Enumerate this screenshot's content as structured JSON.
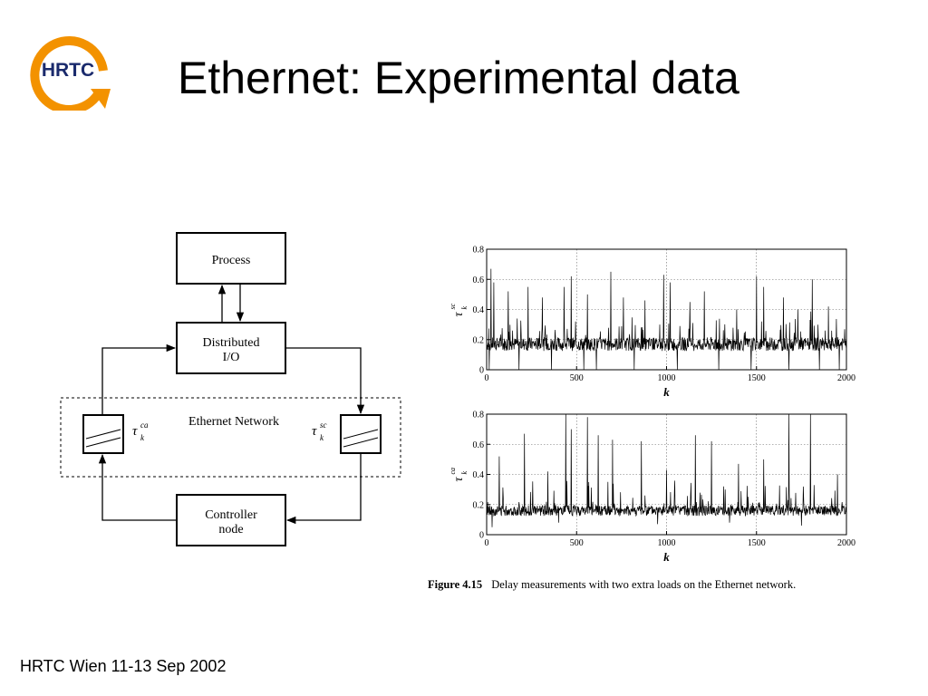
{
  "header": {
    "logo_text": "HRTC",
    "title": "Ethernet: Experimental data"
  },
  "diagram": {
    "process_label": "Process",
    "io_label_line1": "Distributed",
    "io_label_line2": "I/O",
    "network_label": "Ethernet Network",
    "controller_label_line1": "Controller",
    "controller_label_line2": "node",
    "delay_left_symbol": "τ",
    "delay_left_super": "ca",
    "delay_left_sub": "k",
    "delay_right_symbol": "τ",
    "delay_right_super": "sc",
    "delay_right_sub": "k"
  },
  "chart_data": [
    {
      "type": "line",
      "xlabel": "k",
      "ylabel_symbol": "τ",
      "ylabel_super": "sc",
      "ylabel_sub": "k",
      "xlim": [
        0,
        2000
      ],
      "ylim": [
        0,
        0.8
      ],
      "xticks": [
        "0",
        "500",
        "1000",
        "1500",
        "2000"
      ],
      "yticks": [
        "0",
        "0.2",
        "0.4",
        "0.6",
        "0.8"
      ],
      "grid": true,
      "baseline": 0.17,
      "noise": 0.045,
      "spikes": [
        [
          25,
          0.67
        ],
        [
          40,
          0.58
        ],
        [
          120,
          0.52
        ],
        [
          230,
          0.55
        ],
        [
          310,
          0.48
        ],
        [
          430,
          0.55
        ],
        [
          470,
          0.62
        ],
        [
          560,
          0.5
        ],
        [
          690,
          0.65
        ],
        [
          760,
          0.48
        ],
        [
          880,
          0.46
        ],
        [
          985,
          0.63
        ],
        [
          1020,
          0.58
        ],
        [
          1130,
          0.45
        ],
        [
          1210,
          0.52
        ],
        [
          1390,
          0.4
        ],
        [
          1500,
          0.62
        ],
        [
          1540,
          0.55
        ],
        [
          1650,
          0.48
        ],
        [
          1730,
          0.4
        ],
        [
          1810,
          0.6
        ],
        [
          1900,
          0.42
        ]
      ],
      "dips": [
        [
          15,
          0.0
        ],
        [
          180,
          0.0
        ],
        [
          360,
          0.0
        ],
        [
          540,
          0.0
        ],
        [
          610,
          0.0
        ],
        [
          820,
          0.0
        ],
        [
          1060,
          0.0
        ],
        [
          1290,
          0.0
        ],
        [
          1470,
          0.0
        ],
        [
          1680,
          0.0
        ],
        [
          1850,
          0.0
        ],
        [
          1960,
          0.0
        ]
      ],
      "seed": 7
    },
    {
      "type": "line",
      "xlabel": "k",
      "ylabel_symbol": "τ",
      "ylabel_super": "ca",
      "ylabel_sub": "k",
      "xlim": [
        0,
        2000
      ],
      "ylim": [
        0,
        0.8
      ],
      "xticks": [
        "0",
        "500",
        "1000",
        "1500",
        "2000"
      ],
      "yticks": [
        "0",
        "0.2",
        "0.4",
        "0.6",
        "0.8"
      ],
      "grid": true,
      "baseline": 0.16,
      "noise": 0.035,
      "spikes": [
        [
          70,
          0.52
        ],
        [
          210,
          0.67
        ],
        [
          340,
          0.42
        ],
        [
          440,
          0.8
        ],
        [
          470,
          0.7
        ],
        [
          560,
          0.78
        ],
        [
          620,
          0.66
        ],
        [
          700,
          0.63
        ],
        [
          860,
          0.62
        ],
        [
          1000,
          0.43
        ],
        [
          1160,
          0.66
        ],
        [
          1250,
          0.62
        ],
        [
          1400,
          0.47
        ],
        [
          1540,
          0.5
        ],
        [
          1680,
          0.8
        ],
        [
          1800,
          0.8
        ],
        [
          1950,
          0.4
        ]
      ],
      "dips": [
        [
          30,
          0.05
        ],
        [
          400,
          0.08
        ],
        [
          950,
          0.07
        ],
        [
          1350,
          0.08
        ],
        [
          1750,
          0.06
        ]
      ],
      "seed": 13
    }
  ],
  "caption": {
    "figure_label": "Figure 4.15",
    "text": "Delay measurements with two extra loads on the Ethernet network."
  },
  "footer": {
    "text": "HRTC Wien 11-13 Sep 2002"
  },
  "colors": {
    "logo_orange": "#f39200",
    "logo_text": "#1a2a6c"
  }
}
